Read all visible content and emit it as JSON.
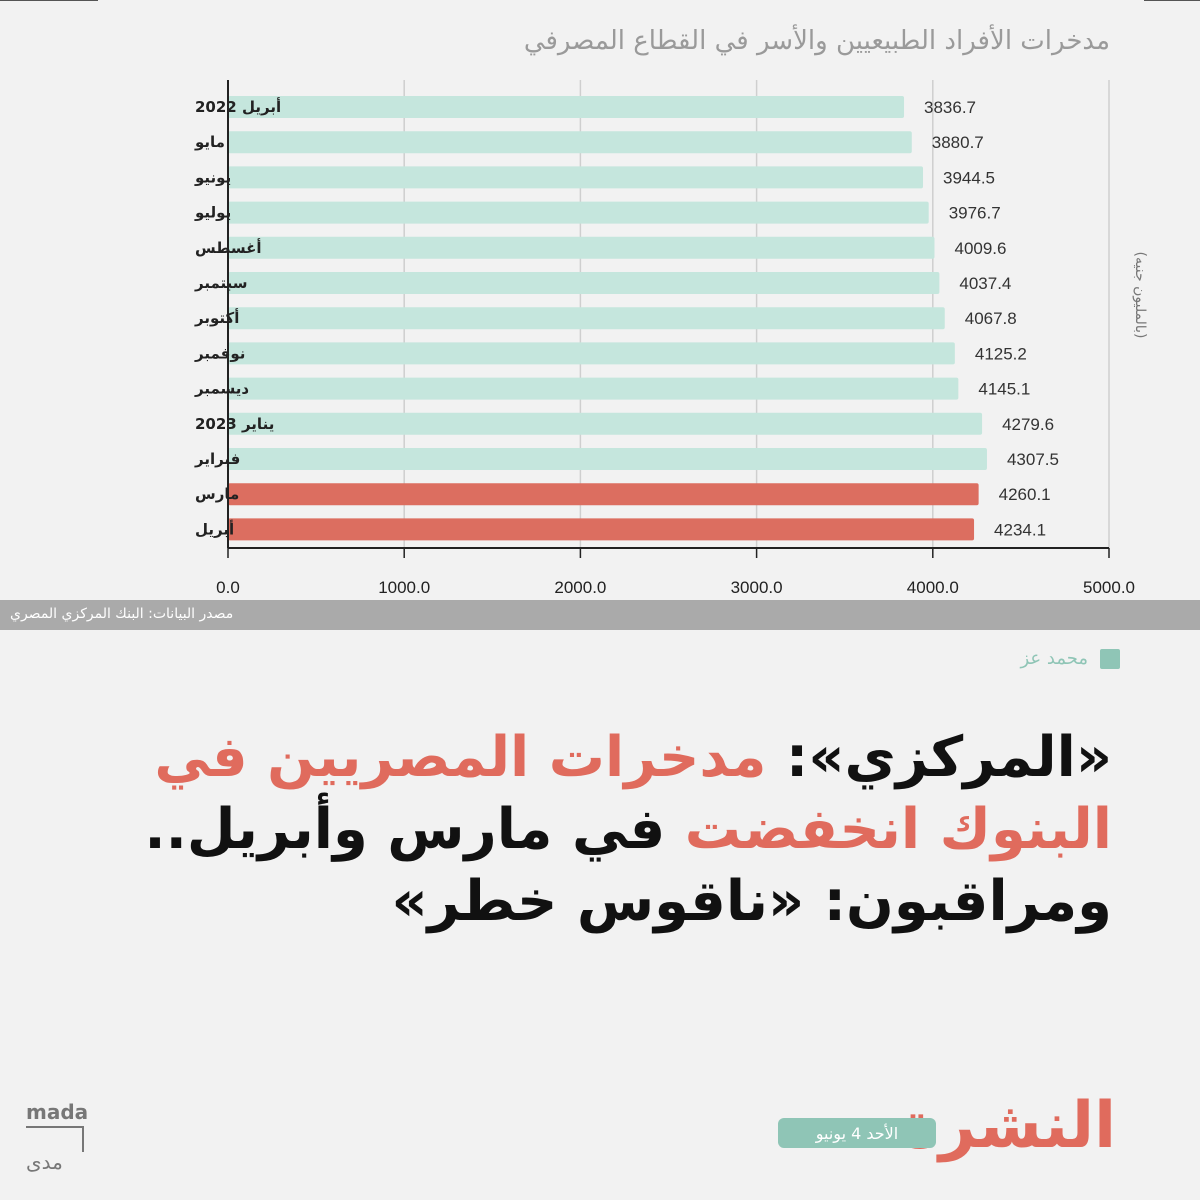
{
  "chart_data": {
    "type": "bar",
    "orientation": "horizontal",
    "title": "مدخرات الأفراد الطبيعيين والأسر في القطاع المصرفي",
    "ylabel": "(بالمليون جنيه)",
    "categories": [
      "أبريل 2022",
      "مايو",
      "يونيو",
      "يوليو",
      "أغسطس",
      "سبتمبر",
      "أكتوبر",
      "نوفمبر",
      "ديسمبر",
      "يناير 2023",
      "فبراير",
      "مارس",
      "أبريل"
    ],
    "values": [
      3836.7,
      3880.7,
      3944.5,
      3976.7,
      4009.6,
      4037.4,
      4067.8,
      4125.2,
      4145.1,
      4279.6,
      4307.5,
      4260.1,
      4234.1
    ],
    "value_labels": [
      "3836.7",
      "3880.7",
      "3944.5",
      "3976.7",
      "4009.6",
      "4037.4",
      "4067.8",
      "4125.2",
      "4145.1",
      "4279.6",
      "4307.5",
      "4260.1",
      "4234.1"
    ],
    "highlighted": [
      false,
      false,
      false,
      false,
      false,
      false,
      false,
      false,
      false,
      false,
      false,
      true,
      true
    ],
    "xlim": [
      0,
      5000
    ],
    "xticks": [
      "0.0",
      "1000.0",
      "2000.0",
      "3000.0",
      "4000.0",
      "5000.0"
    ],
    "grid": true,
    "colors": {
      "default": "#c5e6dd",
      "highlight": "#dc6e60"
    }
  },
  "source": "مصدر البيانات: البنك المركزي المصري",
  "author": "محمد عز",
  "headline": {
    "part1": "«المركزي»: ",
    "part2": "مدخرات المصريين في البنوك انخفضت",
    "part3": " في مارس وأبريل.. ومراقبون: «ناقوس خطر»"
  },
  "brand": "النشرة",
  "date": "الأحد 4 يونيو",
  "logo": {
    "latin": "mada",
    "arabic": "مدى"
  },
  "colors": {
    "accent": "#e06b5d",
    "teal": "#8fc5b6",
    "background": "#f2f2f2"
  }
}
